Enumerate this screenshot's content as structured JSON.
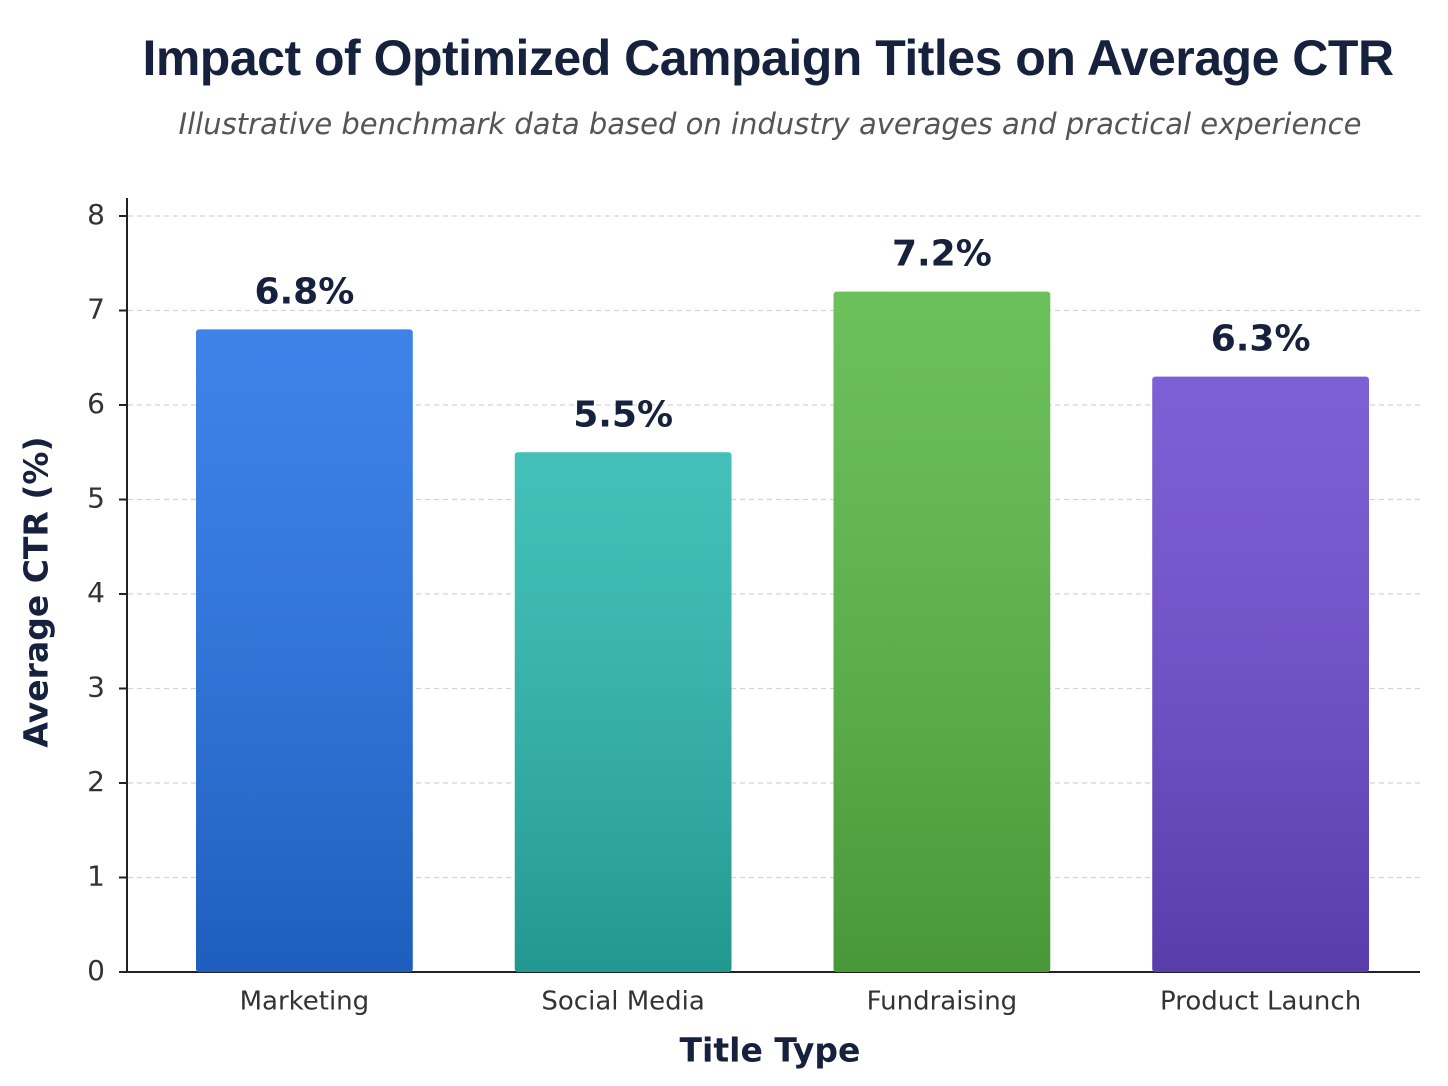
{
  "chart_data": {
    "type": "bar",
    "title": "Impact of Optimized Campaign Titles on Average CTR",
    "subtitle": "Illustrative benchmark data based on industry averages and practical experience",
    "x_label": "Title Type",
    "y_label": "Average CTR (%)",
    "categories": [
      "Marketing",
      "Social Media",
      "Fundraising",
      "Product Launch"
    ],
    "values": [
      6.8,
      5.5,
      7.2,
      6.3
    ],
    "value_labels": [
      "6.8%",
      "5.5%",
      "7.2%",
      "6.3%"
    ],
    "colors": [
      "#2472e6",
      "#2ab8b0",
      "#58b845",
      "#6c4ad0"
    ],
    "ylim": [
      0,
      8
    ],
    "yticks": [
      0,
      1,
      2,
      3,
      4,
      5,
      6,
      7,
      8
    ],
    "grid": true
  }
}
